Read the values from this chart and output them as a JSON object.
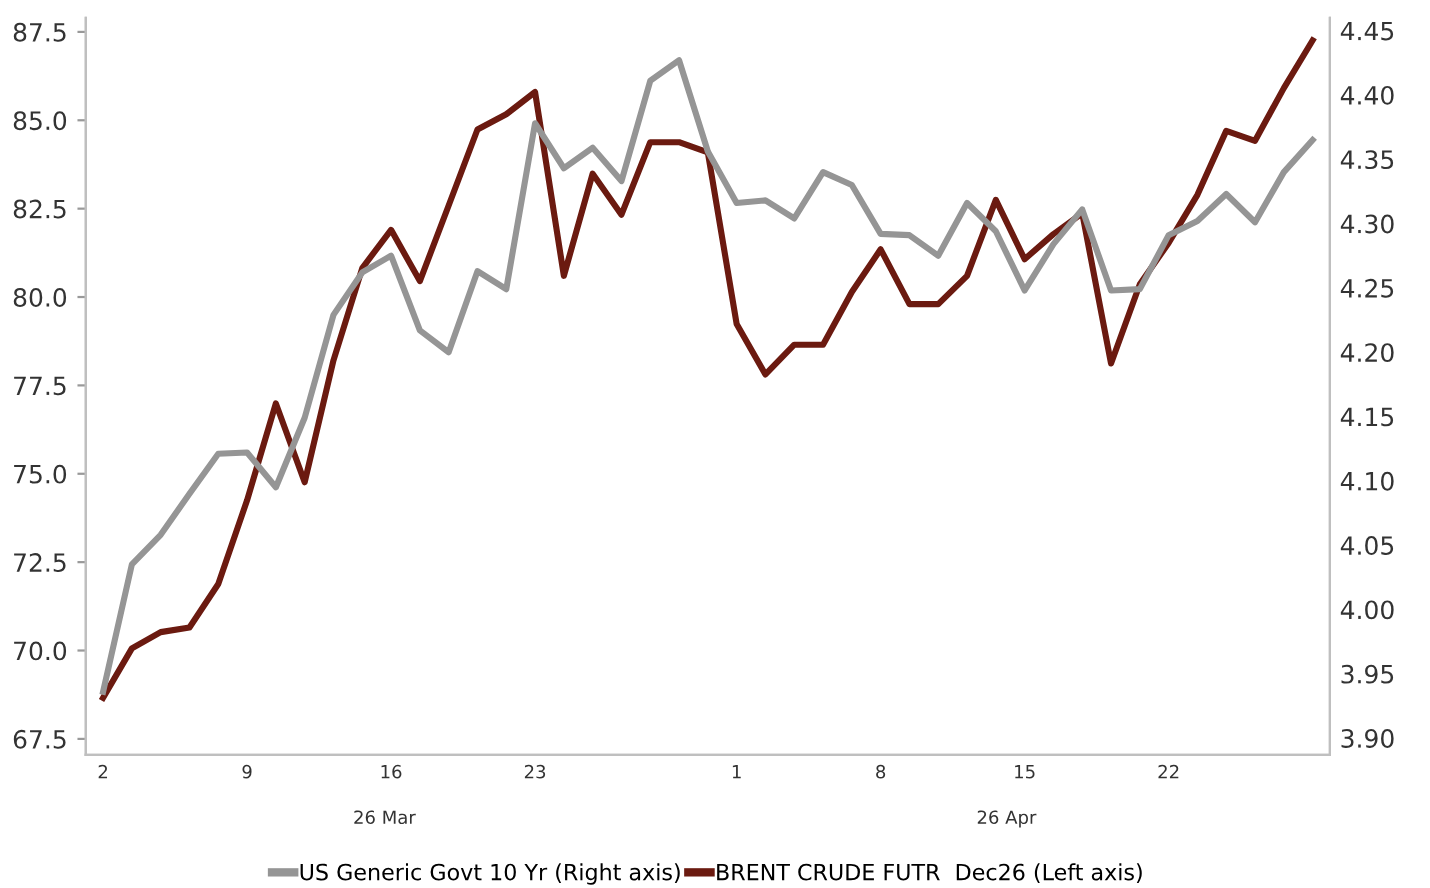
{
  "chart_data": {
    "type": "line",
    "categories": [
      "2",
      null,
      null,
      null,
      null,
      "9",
      null,
      null,
      null,
      null,
      "16",
      null,
      null,
      null,
      null,
      "23",
      null,
      null,
      null,
      null,
      null,
      null,
      "1",
      null,
      null,
      null,
      null,
      "8",
      null,
      null,
      null,
      null,
      "15",
      null,
      null,
      null,
      null,
      "22",
      null,
      null,
      null,
      null,
      null
    ],
    "series": [
      {
        "name": "US Generic Govt 10 Yr (Right axis)",
        "color": "#959595",
        "axis": "y2",
        "values": [
          3.936,
          4.035,
          4.058,
          4.09,
          4.121,
          4.122,
          4.095,
          4.149,
          4.229,
          4.262,
          4.275,
          4.217,
          4.2,
          4.263,
          4.249,
          4.378,
          4.343,
          4.359,
          4.333,
          4.411,
          4.427,
          4.356,
          4.316,
          4.318,
          4.304,
          4.34,
          4.33,
          4.292,
          4.291,
          4.275,
          4.316,
          4.294,
          4.248,
          4.284,
          4.311,
          4.248,
          4.249,
          4.291,
          4.302,
          4.323,
          4.301,
          4.34,
          4.365
        ]
      },
      {
        "name": "BRENT CRUDE FUTR  Dec26 (Left axis)",
        "color": "#6b1a10",
        "values": [
          68.66,
          70.06,
          70.52,
          70.65,
          71.88,
          74.25,
          76.99,
          74.76,
          78.21,
          80.82,
          81.9,
          80.45,
          82.59,
          84.74,
          85.17,
          85.8,
          80.6,
          83.49,
          82.33,
          84.38,
          84.38,
          84.09,
          79.24,
          77.81,
          78.65,
          78.65,
          80.14,
          81.35,
          79.8,
          79.8,
          80.6,
          82.75,
          81.07,
          81.78,
          82.37,
          78.12,
          80.36,
          81.53,
          82.89,
          84.7,
          84.42,
          85.91,
          87.26
        ]
      }
    ],
    "ylim": [
      67.05,
      87.9
    ],
    "yticks": [
      {
        "value": 67.5,
        "label": "67.5"
      },
      {
        "value": 70,
        "label": "70.0"
      },
      {
        "value": 72.5,
        "label": "72.5"
      },
      {
        "value": 75,
        "label": "75.0"
      },
      {
        "value": 77.5,
        "label": "77.5"
      },
      {
        "value": 80,
        "label": "80.0"
      },
      {
        "value": 82.5,
        "label": "82.5"
      },
      {
        "value": 85,
        "label": "85.0"
      },
      {
        "value": 87.5,
        "label": "87.5"
      }
    ],
    "y2lim": [
      3.887,
      4.46
    ],
    "y2ticks": [
      {
        "value": 3.9,
        "label": "3.90"
      },
      {
        "value": 3.95,
        "label": "3.95"
      },
      {
        "value": 4.0,
        "label": "4.00"
      },
      {
        "value": 4.05,
        "label": "4.05"
      },
      {
        "value": 4.1,
        "label": "4.10"
      },
      {
        "value": 4.15,
        "label": "4.15"
      },
      {
        "value": 4.2,
        "label": "4.20"
      },
      {
        "value": 4.25,
        "label": "4.25"
      },
      {
        "value": 4.3,
        "label": "4.30"
      },
      {
        "value": 4.35,
        "label": "4.35"
      },
      {
        "value": 4.4,
        "label": "4.40"
      },
      {
        "value": 4.45,
        "label": "4.45"
      }
    ],
    "annotations": [
      "26 Mar",
      "26 Apr"
    ],
    "legend": "bottom",
    "grid": false,
    "marker": "none",
    "line_style": "solid"
  }
}
